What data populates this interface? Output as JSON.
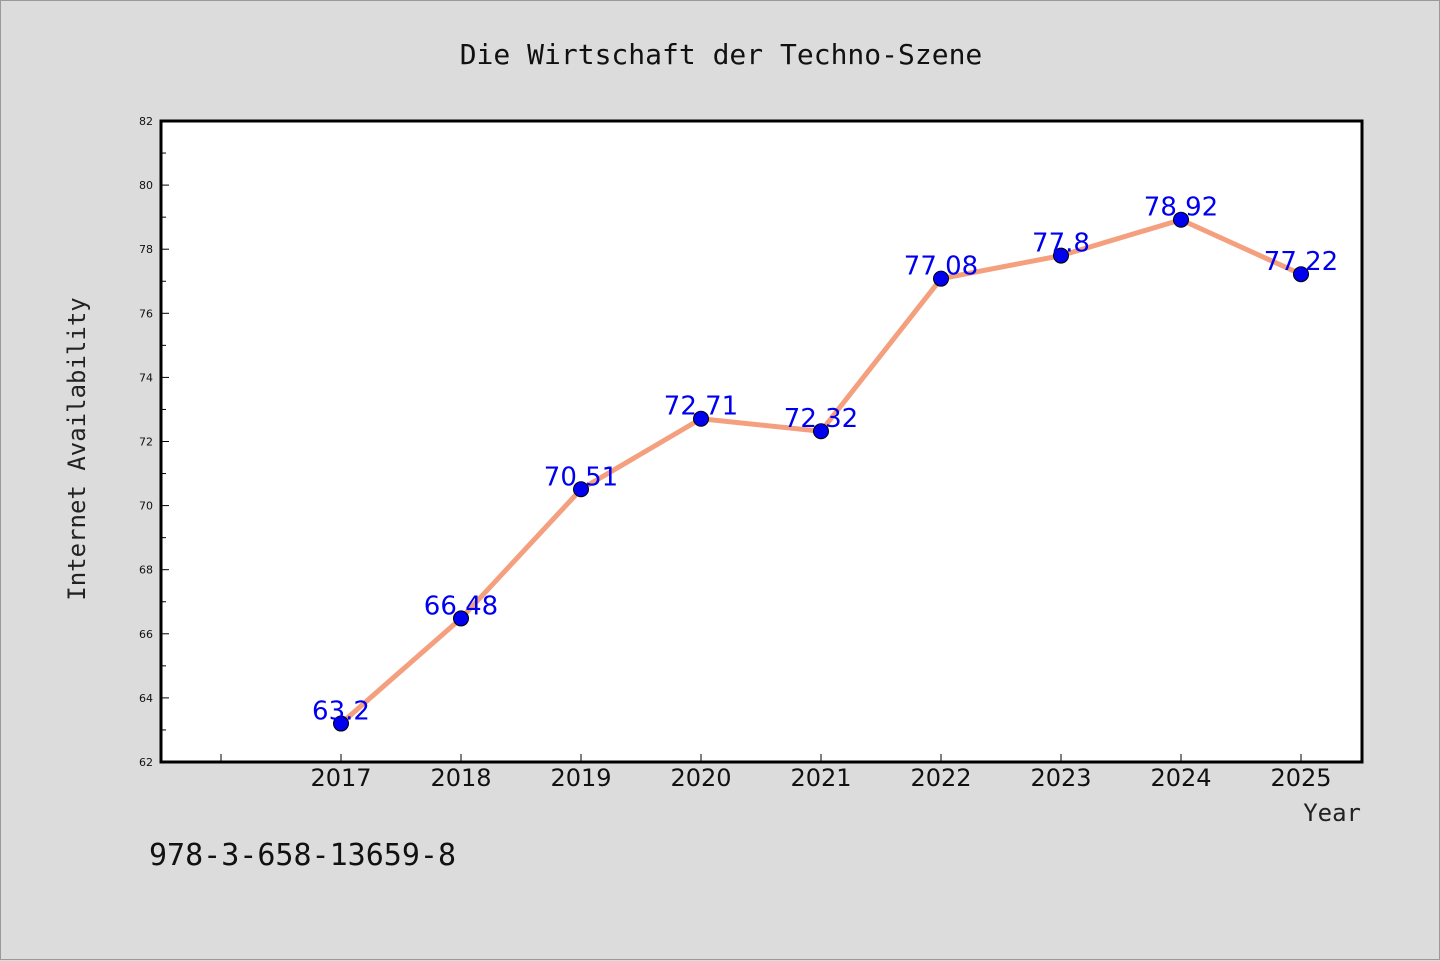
{
  "chart_data": {
    "type": "line",
    "title": "Die Wirtschaft der Techno-Szene",
    "xlabel": "Year",
    "ylabel": "Internet Availability",
    "categories": [
      "2017",
      "2018",
      "2019",
      "2020",
      "2021",
      "2022",
      "2023",
      "2024",
      "2025"
    ],
    "series": [
      {
        "values": [
          63.2,
          66.48,
          70.51,
          72.71,
          72.32,
          77.08,
          77.8,
          78.92,
          77.22
        ],
        "data_labels": [
          "63.2",
          "66.48",
          "70.51",
          "72.71",
          "72.32",
          "77.08",
          "77.8",
          "78.92",
          "77.22"
        ],
        "line_color": "#f4a07f",
        "marker_color": "#0000ee",
        "label_color": "#0000ee"
      }
    ],
    "ylim": [
      62,
      82
    ],
    "yticks": [
      "62",
      "64",
      "66",
      "68",
      "70",
      "72",
      "74",
      "76",
      "78",
      "80",
      "82"
    ],
    "grid": false,
    "legend": "none"
  },
  "footer": {
    "isbn": "978-3-658-13659-8"
  },
  "colors": {
    "background": "#dcdcdc",
    "plot_background": "#ffffff",
    "axis": "#000000"
  }
}
